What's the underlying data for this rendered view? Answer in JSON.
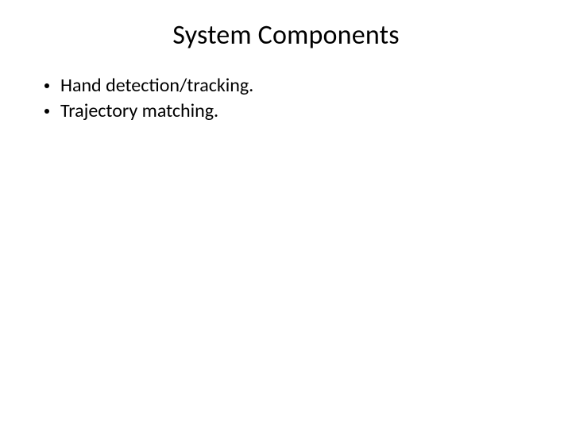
{
  "slide": {
    "title": "System Components",
    "title_fontsize": 34,
    "title_color": "#000000",
    "title_align": "center",
    "background_color": "#ffffff",
    "font_family": "Calibri",
    "bullets": [
      {
        "text": "Hand detection/tracking."
      },
      {
        "text": "Trajectory matching."
      }
    ],
    "bullet_fontsize": 24,
    "bullet_color": "#000000",
    "bullet_marker_color": "#000000",
    "bullet_marker_size": 6
  }
}
